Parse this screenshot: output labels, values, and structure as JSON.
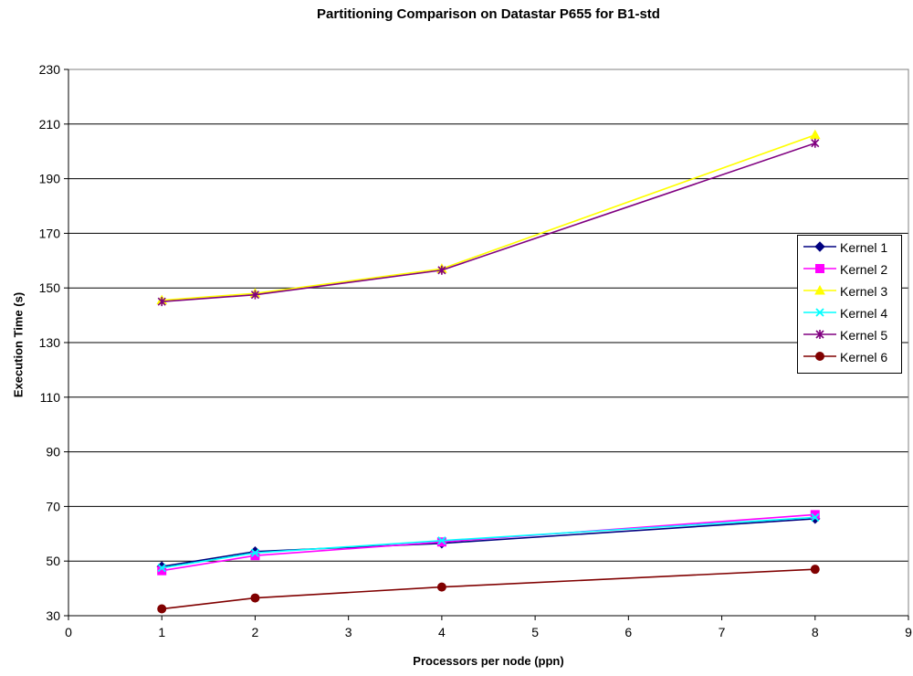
{
  "chart_data": {
    "type": "line",
    "title": "Partitioning Comparison on Datastar P655 for B1-std",
    "xlabel": "Processors per node (ppn)",
    "ylabel": "Execution Time (s)",
    "xlim": [
      0,
      9
    ],
    "ylim": [
      30,
      230
    ],
    "xticks": [
      0,
      1,
      2,
      3,
      4,
      5,
      6,
      7,
      8,
      9
    ],
    "yticks": [
      30,
      50,
      70,
      90,
      110,
      130,
      150,
      170,
      190,
      210,
      230
    ],
    "grid": "horizontal",
    "legend_position": "right",
    "x": [
      1,
      2,
      4,
      8
    ],
    "series": [
      {
        "name": "Kernel 1",
        "color": "#000080",
        "marker": "diamond",
        "values": [
          48,
          53.5,
          56.5,
          65.5
        ]
      },
      {
        "name": "Kernel 2",
        "color": "#ff00ff",
        "marker": "square",
        "values": [
          46.5,
          52,
          57,
          67
        ]
      },
      {
        "name": "Kernel 3",
        "color": "#ffff00",
        "marker": "triangle",
        "values": [
          145.5,
          148,
          157,
          206
        ]
      },
      {
        "name": "Kernel 4",
        "color": "#00ffff",
        "marker": "x",
        "values": [
          47.5,
          53,
          57.5,
          66
        ]
      },
      {
        "name": "Kernel 5",
        "color": "#800080",
        "marker": "star",
        "values": [
          145,
          147.5,
          156.5,
          203
        ]
      },
      {
        "name": "Kernel 6",
        "color": "#800000",
        "marker": "circle",
        "values": [
          32.5,
          36.5,
          40.5,
          47
        ]
      }
    ]
  }
}
